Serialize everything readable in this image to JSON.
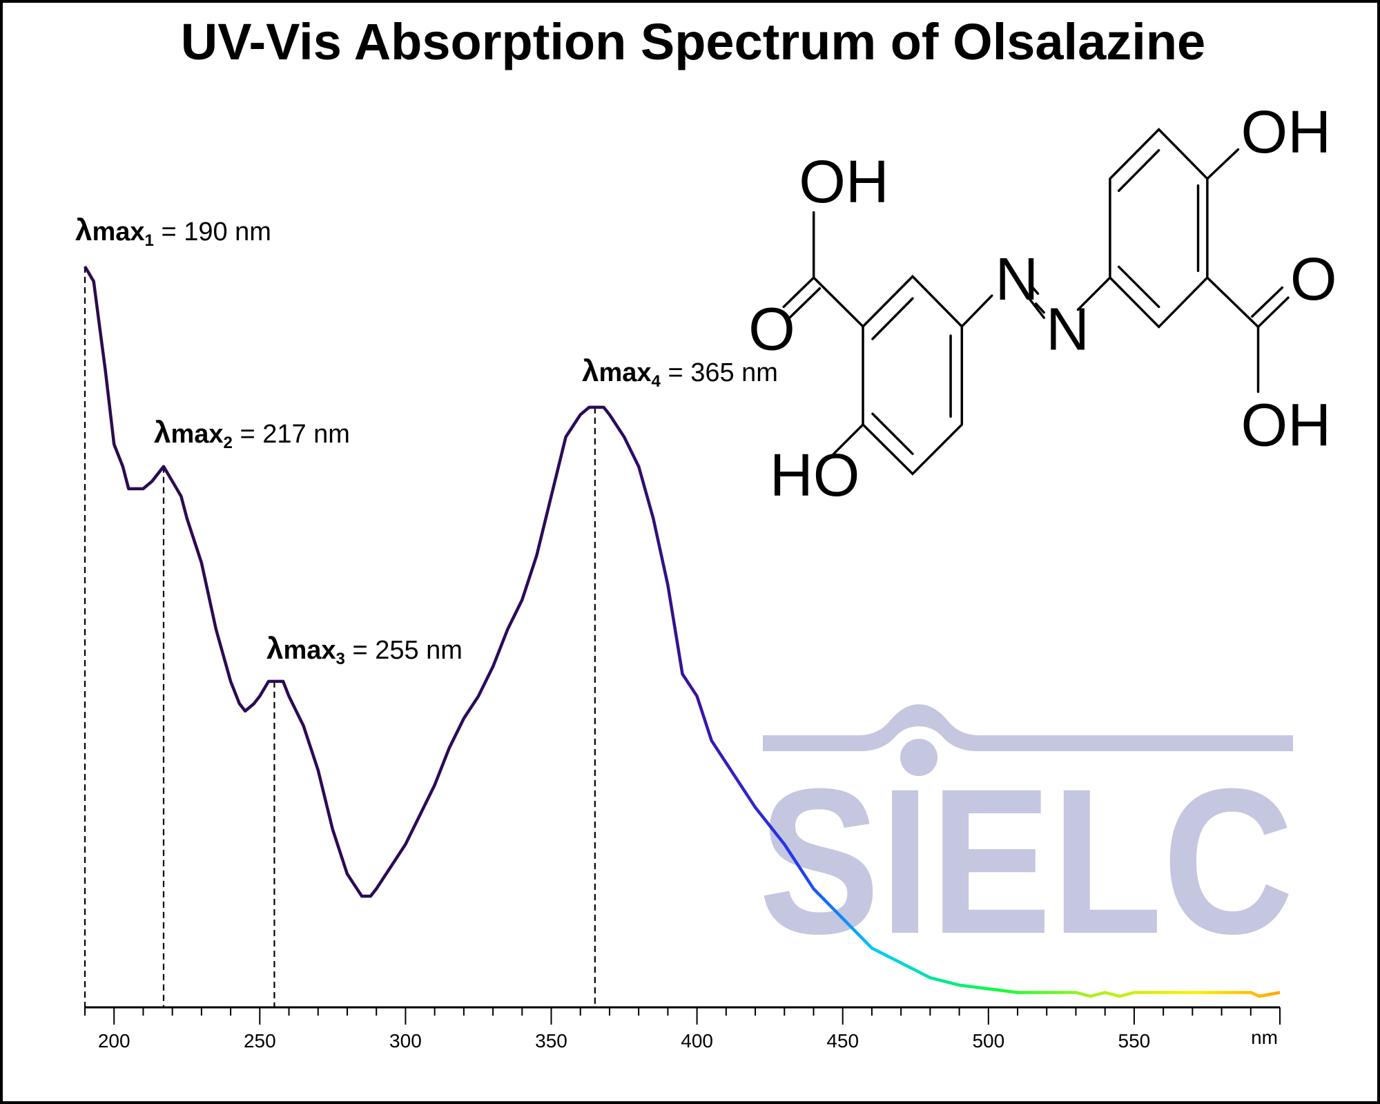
{
  "chart_data": {
    "type": "line",
    "title": "UV-Vis Absorption Spectrum of Olsalazine",
    "xlabel": "nm",
    "ylabel": "",
    "xlim": [
      190,
      600
    ],
    "ylim": [
      0,
      1.0
    ],
    "x_ticks": [
      200,
      250,
      300,
      350,
      400,
      450,
      500,
      550
    ],
    "x_tick_labels": [
      "200",
      "250",
      "300",
      "350",
      "400",
      "450",
      "500",
      "550"
    ],
    "grid": false,
    "series": [
      {
        "name": "Olsalazine",
        "x": [
          190,
          193,
          195,
          197,
          200,
          203,
          205,
          207,
          210,
          213,
          217,
          220,
          223,
          225,
          230,
          235,
          240,
          243,
          245,
          248,
          250,
          253,
          255,
          258,
          260,
          265,
          270,
          275,
          280,
          285,
          288,
          290,
          295,
          300,
          305,
          310,
          315,
          320,
          325,
          330,
          335,
          340,
          345,
          350,
          355,
          360,
          363,
          365,
          368,
          370,
          375,
          380,
          385,
          390,
          395,
          400,
          405,
          410,
          415,
          420,
          430,
          440,
          450,
          460,
          470,
          480,
          490,
          500,
          510,
          530,
          535,
          540,
          545,
          550,
          570,
          590,
          593,
          600
        ],
        "y": [
          1.0,
          0.98,
          0.92,
          0.86,
          0.76,
          0.73,
          0.7,
          0.7,
          0.7,
          0.71,
          0.73,
          0.71,
          0.69,
          0.66,
          0.6,
          0.51,
          0.44,
          0.41,
          0.4,
          0.41,
          0.42,
          0.44,
          0.44,
          0.44,
          0.42,
          0.38,
          0.32,
          0.24,
          0.18,
          0.15,
          0.15,
          0.16,
          0.19,
          0.22,
          0.26,
          0.3,
          0.35,
          0.39,
          0.42,
          0.46,
          0.51,
          0.55,
          0.61,
          0.69,
          0.77,
          0.8,
          0.81,
          0.81,
          0.81,
          0.8,
          0.77,
          0.73,
          0.66,
          0.57,
          0.45,
          0.42,
          0.36,
          0.33,
          0.3,
          0.27,
          0.22,
          0.16,
          0.12,
          0.08,
          0.06,
          0.04,
          0.03,
          0.025,
          0.02,
          0.02,
          0.015,
          0.02,
          0.015,
          0.02,
          0.02,
          0.02,
          0.015,
          0.02
        ]
      }
    ],
    "annotations": [
      {
        "prefix": "λ",
        "sub_label": "max",
        "index": "1",
        "text": " = 190 nm",
        "x": 190,
        "y": 1.0
      },
      {
        "prefix": "λ",
        "sub_label": "max",
        "index": "2",
        "text": " = 217 nm",
        "x": 217,
        "y": 0.73
      },
      {
        "prefix": "λ",
        "sub_label": "max",
        "index": "3",
        "text": " = 255 nm",
        "x": 255,
        "y": 0.44
      },
      {
        "prefix": "λ",
        "sub_label": "max",
        "index": "4",
        "text": " = 365 nm",
        "x": 365,
        "y": 0.81
      }
    ],
    "gradient_colors": [
      "#2b0b4f",
      "#2b0b5c",
      "#3a14b0",
      "#1f3cf0",
      "#00c8ff",
      "#00ff40",
      "#a8f020",
      "#ffee00",
      "#ffa500"
    ]
  },
  "structure": {
    "labels": {
      "oh1": "OH",
      "o1": "O",
      "ho1": "HO",
      "n1": "N",
      "n2": "N",
      "oh2": "OH",
      "o2": "O",
      "oh3": "OH"
    }
  },
  "watermark": {
    "text": "SIELC",
    "color": "#c5c6e0"
  }
}
